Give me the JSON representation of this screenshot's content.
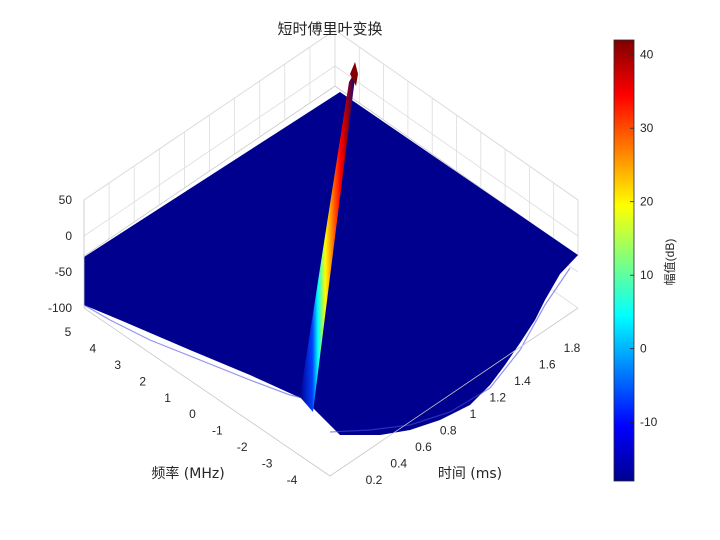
{
  "chart_data": {
    "type": "surface",
    "title": "短时傅里叶变换",
    "xlabel": "时间 (ms)",
    "ylabel": "频率 (MHz)",
    "colorbar_label": "幅值(dB)",
    "colormap": "jet",
    "x_ticks": [
      "0.2",
      "0.4",
      "0.6",
      "0.8",
      "1",
      "1.2",
      "1.4",
      "1.6",
      "1.8"
    ],
    "y_ticks": [
      "-4",
      "-3",
      "-2",
      "-1",
      "0",
      "1",
      "2",
      "3",
      "4",
      "5"
    ],
    "z_ticks": [
      "-100",
      "-50",
      "0",
      "50"
    ],
    "colorbar_ticks": [
      "-10",
      "0",
      "10",
      "20",
      "30",
      "40"
    ],
    "xlim": [
      0,
      2
    ],
    "ylim": [
      -5,
      5
    ],
    "zlim": [
      -100,
      50
    ],
    "clim": [
      -18,
      42
    ],
    "grid": true,
    "colors": {
      "floor": "#00008f",
      "peak": "#800000"
    },
    "ridge": {
      "description": "LFM chirp",
      "points": [
        {
          "t_ms": 0.0,
          "f_mhz": -5.0,
          "z_db": 42
        },
        {
          "t_ms": 1.0,
          "f_mhz": 0.0,
          "z_db": 42
        },
        {
          "t_ms": 2.0,
          "f_mhz": 5.0,
          "z_db": 42
        }
      ]
    }
  }
}
